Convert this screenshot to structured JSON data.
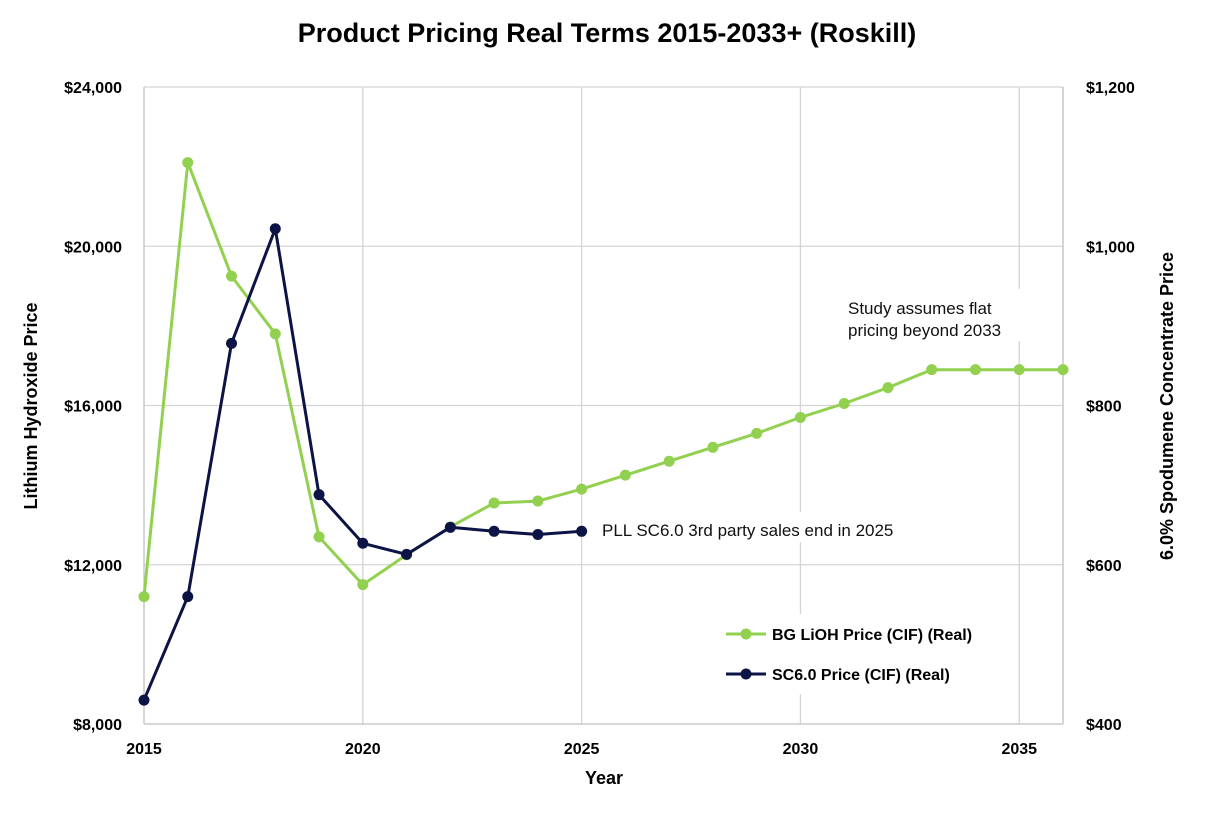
{
  "chart_data": {
    "type": "line",
    "title": "Product Pricing Real Terms 2015-2033+ (Roskill)",
    "xlabel": "Year",
    "ylabel": "Lithium Hydroxide Price",
    "ylabel_right": "6.0% Spodumene Concentrate Price",
    "xlim": [
      2015,
      2036
    ],
    "ylim": [
      8000,
      24000
    ],
    "ylim_right": [
      400,
      1200
    ],
    "x_ticks": [
      "2015",
      "2020",
      "2025",
      "2030",
      "2035"
    ],
    "y_ticks": [
      "$8,000",
      "$12,000",
      "$16,000",
      "$20,000",
      "$24,000"
    ],
    "y_ticks_right": [
      "$400",
      "$600",
      "$800",
      "$1,000",
      "$1,200"
    ],
    "grid": true,
    "legend_position": "lower-right",
    "series": [
      {
        "name": "BG LiOH Price (CIF) (Real)",
        "axis": "left",
        "color": "#92d050",
        "x": [
          2015,
          2016,
          2017,
          2018,
          2019,
          2020,
          2021,
          2022,
          2023,
          2024,
          2025,
          2026,
          2027,
          2028,
          2029,
          2030,
          2031,
          2032,
          2033,
          2034,
          2035,
          2036
        ],
        "values": [
          11200,
          22100,
          19250,
          17800,
          12700,
          11500,
          12250,
          12950,
          13550,
          13600,
          13900,
          14250,
          14600,
          14950,
          15300,
          15700,
          16050,
          16450,
          16900,
          16900,
          16900,
          16900
        ]
      },
      {
        "name": "SC6.0 Price (CIF) (Real)",
        "axis": "right",
        "color": "#0c1445",
        "x": [
          2015,
          2016,
          2017,
          2018,
          2019,
          2020,
          2021,
          2022,
          2023,
          2024,
          2025
        ],
        "values": [
          430,
          560,
          878,
          1022,
          688,
          627,
          613,
          647,
          642,
          638,
          642
        ]
      }
    ],
    "annotations": [
      {
        "lines": [
          "Study assumes flat",
          "pricing beyond 2033"
        ]
      },
      {
        "lines": [
          "PLL SC6.0 3rd party sales end in 2025"
        ]
      }
    ]
  }
}
